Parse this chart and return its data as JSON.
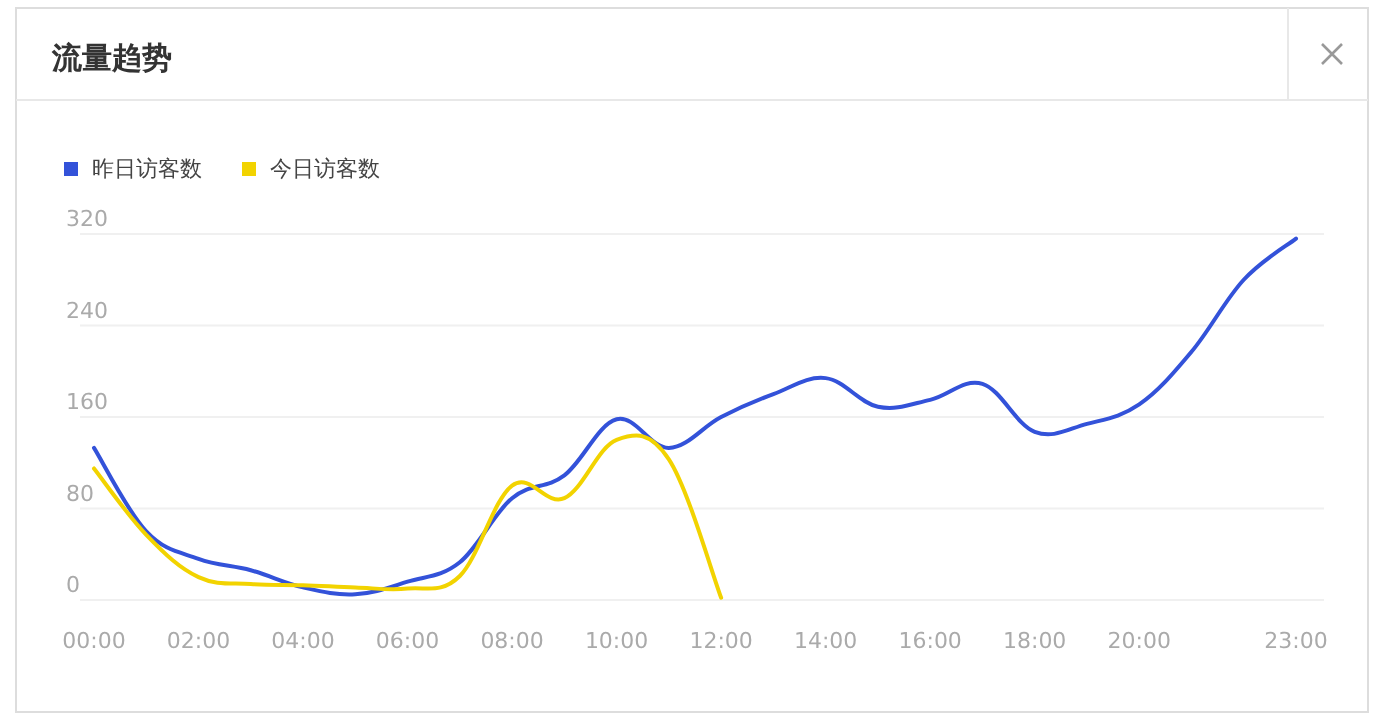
{
  "chart_data": {
    "type": "line",
    "title": "流量趋势",
    "categories": [
      "00:00",
      null,
      "02:00",
      null,
      "04:00",
      null,
      "06:00",
      null,
      "08:00",
      null,
      "10:00",
      null,
      "12:00",
      null,
      "14:00",
      null,
      "16:00",
      null,
      "18:00",
      null,
      "20:00",
      null,
      null,
      "23:00"
    ],
    "series": [
      {
        "name": "昨日访客数",
        "color": "#3352d9",
        "values": [
          133,
          60,
          36,
          26,
          11,
          5,
          16,
          33,
          89,
          109,
          158,
          133,
          160,
          180,
          194,
          169,
          175,
          189,
          147,
          154,
          171,
          217,
          280,
          316
        ]
      },
      {
        "name": "今日访客数",
        "color": "#f2d300",
        "values": [
          115,
          57,
          20,
          14,
          13,
          11,
          10,
          21,
          100,
          89,
          140,
          123,
          2,
          null,
          null,
          null,
          null,
          null,
          null,
          null,
          null,
          null,
          null,
          null
        ]
      }
    ],
    "ylim": [
      0,
      320
    ],
    "yticks": [
      0,
      80,
      160,
      240,
      320
    ],
    "grid": "y",
    "legend": "top left",
    "marker": "none",
    "line_style": "solid"
  }
}
